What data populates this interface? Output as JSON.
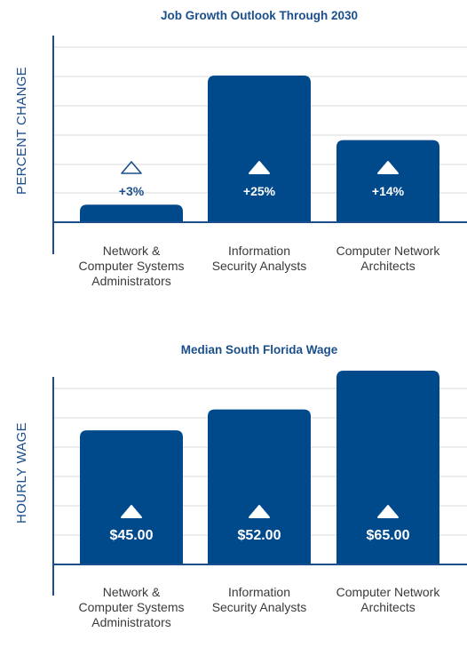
{
  "colors": {
    "bar": "#004a8c",
    "text_blue": "#1b4f8c",
    "axis_text": "#3a3a3a",
    "gridline": "#d9d9d9",
    "axis_line": "#1b4f8c"
  },
  "chart_data": [
    {
      "type": "bar",
      "title": "Job Growth Outlook Through 2030",
      "ylabel": "PERCENT CHANGE",
      "xlabel": "",
      "ylim": [
        0,
        25
      ],
      "grid": true,
      "categories": [
        [
          "Network &",
          "Computer Systems",
          "Administrators"
        ],
        [
          "Information",
          "Security Analysts"
        ],
        [
          "Computer Network",
          "Architects"
        ]
      ],
      "values": [
        3,
        25,
        14
      ],
      "data_labels": [
        "+3%",
        "+25%",
        "+14%"
      ],
      "marker_icon": "up-triangle-icon"
    },
    {
      "type": "bar",
      "title": "Median South Florida Wage",
      "ylabel": "HOURLY WAGE",
      "xlabel": "",
      "ylim": [
        0,
        65
      ],
      "grid": true,
      "categories": [
        [
          "Network &",
          "Computer Systems",
          "Administrators"
        ],
        [
          "Information",
          "Security Analysts"
        ],
        [
          "Computer Network",
          "Architects"
        ]
      ],
      "values": [
        45,
        52,
        65
      ],
      "data_labels": [
        "$45.00",
        "$52.00",
        "$65.00"
      ],
      "marker_icon": "up-triangle-icon"
    }
  ]
}
